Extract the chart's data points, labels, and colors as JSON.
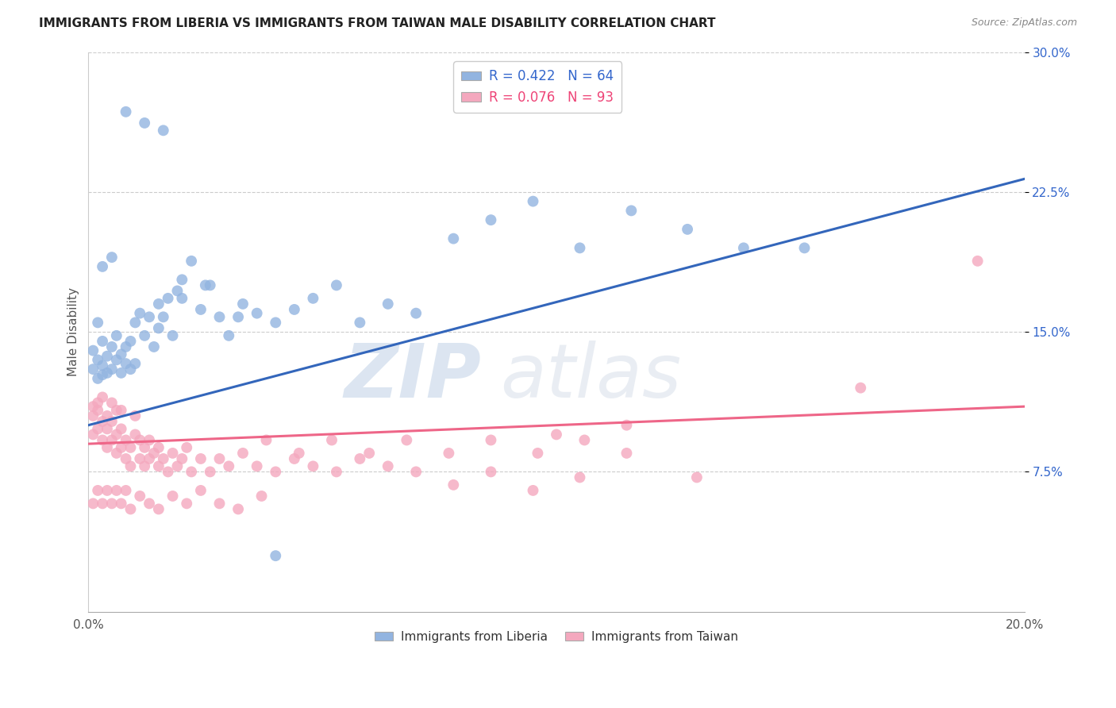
{
  "title": "IMMIGRANTS FROM LIBERIA VS IMMIGRANTS FROM TAIWAN MALE DISABILITY CORRELATION CHART",
  "source": "Source: ZipAtlas.com",
  "ylabel": "Male Disability",
  "xmin": 0.0,
  "xmax": 0.2,
  "ymin": 0.0,
  "ymax": 0.3,
  "yticks": [
    0.075,
    0.15,
    0.225,
    0.3
  ],
  "ytick_labels": [
    "7.5%",
    "15.0%",
    "22.5%",
    "30.0%"
  ],
  "xticks": [
    0.0,
    0.04,
    0.08,
    0.12,
    0.16,
    0.2
  ],
  "xtick_labels": [
    "0.0%",
    "",
    "",
    "",
    "",
    "20.0%"
  ],
  "legend_blue_label": "R = 0.422   N = 64",
  "legend_pink_label": "R = 0.076   N = 93",
  "legend_bottom_blue": "Immigrants from Liberia",
  "legend_bottom_pink": "Immigrants from Taiwan",
  "blue_color": "#92B4E0",
  "pink_color": "#F4A8BE",
  "blue_line_color": "#3366BB",
  "pink_line_color": "#EE6688",
  "watermark": "ZIPatlas",
  "blue_line_x0": 0.0,
  "blue_line_y0": 0.1,
  "blue_line_x1": 0.2,
  "blue_line_y1": 0.232,
  "pink_line_x0": 0.0,
  "pink_line_y0": 0.09,
  "pink_line_x1": 0.2,
  "pink_line_y1": 0.11,
  "blue_scatter_x": [
    0.001,
    0.001,
    0.002,
    0.002,
    0.003,
    0.003,
    0.003,
    0.004,
    0.004,
    0.005,
    0.005,
    0.006,
    0.006,
    0.007,
    0.007,
    0.008,
    0.008,
    0.009,
    0.009,
    0.01,
    0.01,
    0.011,
    0.012,
    0.013,
    0.014,
    0.015,
    0.015,
    0.016,
    0.017,
    0.018,
    0.019,
    0.02,
    0.022,
    0.024,
    0.026,
    0.028,
    0.03,
    0.033,
    0.036,
    0.04,
    0.044,
    0.048,
    0.053,
    0.058,
    0.064,
    0.07,
    0.078,
    0.086,
    0.095,
    0.105,
    0.116,
    0.128,
    0.14,
    0.153,
    0.003,
    0.005,
    0.008,
    0.012,
    0.016,
    0.002,
    0.02,
    0.025,
    0.032,
    0.04
  ],
  "blue_scatter_y": [
    0.13,
    0.14,
    0.125,
    0.135,
    0.127,
    0.132,
    0.145,
    0.128,
    0.137,
    0.13,
    0.142,
    0.135,
    0.148,
    0.128,
    0.138,
    0.133,
    0.142,
    0.13,
    0.145,
    0.133,
    0.155,
    0.16,
    0.148,
    0.158,
    0.142,
    0.152,
    0.165,
    0.158,
    0.168,
    0.148,
    0.172,
    0.178,
    0.188,
    0.162,
    0.175,
    0.158,
    0.148,
    0.165,
    0.16,
    0.155,
    0.162,
    0.168,
    0.175,
    0.155,
    0.165,
    0.16,
    0.2,
    0.21,
    0.22,
    0.195,
    0.215,
    0.205,
    0.195,
    0.195,
    0.185,
    0.19,
    0.268,
    0.262,
    0.258,
    0.155,
    0.168,
    0.175,
    0.158,
    0.03
  ],
  "pink_scatter_x": [
    0.001,
    0.001,
    0.001,
    0.002,
    0.002,
    0.002,
    0.003,
    0.003,
    0.003,
    0.004,
    0.004,
    0.004,
    0.005,
    0.005,
    0.005,
    0.006,
    0.006,
    0.006,
    0.007,
    0.007,
    0.007,
    0.008,
    0.008,
    0.009,
    0.009,
    0.01,
    0.01,
    0.011,
    0.011,
    0.012,
    0.012,
    0.013,
    0.013,
    0.014,
    0.015,
    0.015,
    0.016,
    0.017,
    0.018,
    0.019,
    0.02,
    0.021,
    0.022,
    0.024,
    0.026,
    0.028,
    0.03,
    0.033,
    0.036,
    0.04,
    0.044,
    0.048,
    0.053,
    0.058,
    0.064,
    0.07,
    0.078,
    0.086,
    0.095,
    0.105,
    0.038,
    0.045,
    0.052,
    0.06,
    0.068,
    0.077,
    0.086,
    0.096,
    0.106,
    0.115,
    0.001,
    0.002,
    0.003,
    0.004,
    0.005,
    0.006,
    0.007,
    0.008,
    0.009,
    0.011,
    0.013,
    0.015,
    0.018,
    0.021,
    0.024,
    0.028,
    0.032,
    0.037,
    0.13,
    0.165,
    0.19,
    0.115,
    0.1
  ],
  "pink_scatter_y": [
    0.11,
    0.105,
    0.095,
    0.112,
    0.098,
    0.108,
    0.092,
    0.102,
    0.115,
    0.088,
    0.098,
    0.105,
    0.092,
    0.102,
    0.112,
    0.085,
    0.095,
    0.108,
    0.088,
    0.098,
    0.108,
    0.082,
    0.092,
    0.078,
    0.088,
    0.095,
    0.105,
    0.082,
    0.092,
    0.078,
    0.088,
    0.082,
    0.092,
    0.085,
    0.078,
    0.088,
    0.082,
    0.075,
    0.085,
    0.078,
    0.082,
    0.088,
    0.075,
    0.082,
    0.075,
    0.082,
    0.078,
    0.085,
    0.078,
    0.075,
    0.082,
    0.078,
    0.075,
    0.082,
    0.078,
    0.075,
    0.068,
    0.075,
    0.065,
    0.072,
    0.092,
    0.085,
    0.092,
    0.085,
    0.092,
    0.085,
    0.092,
    0.085,
    0.092,
    0.085,
    0.058,
    0.065,
    0.058,
    0.065,
    0.058,
    0.065,
    0.058,
    0.065,
    0.055,
    0.062,
    0.058,
    0.055,
    0.062,
    0.058,
    0.065,
    0.058,
    0.055,
    0.062,
    0.072,
    0.12,
    0.188,
    0.1,
    0.095
  ]
}
